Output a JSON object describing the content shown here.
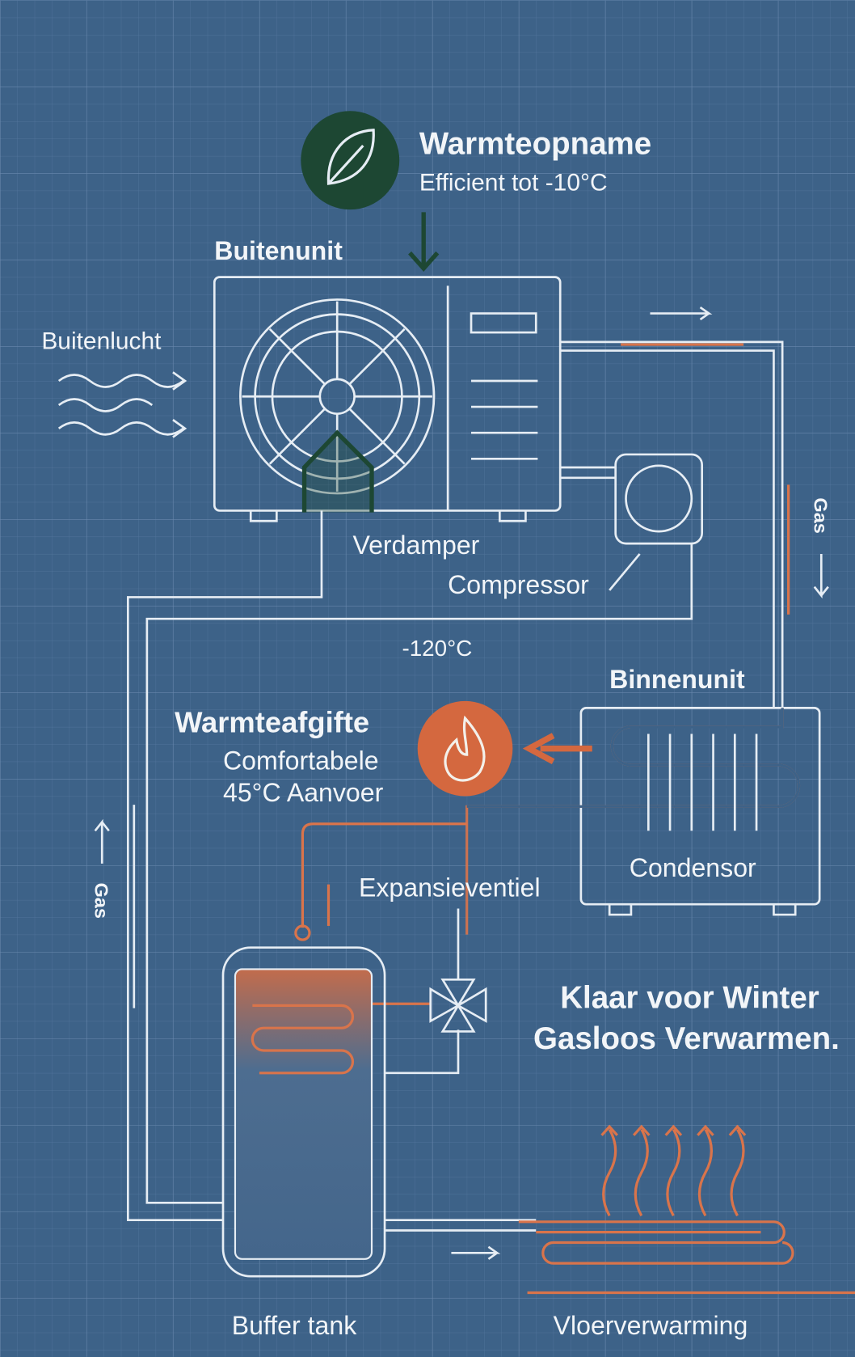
{
  "heat_intake": {
    "title": "Warmteopname",
    "subtitle": "Efficient tot -10°C"
  },
  "outdoor_unit": {
    "label": "Buitenunit",
    "air_label": "Buitenlucht",
    "evaporator_label": "Verdamper",
    "compressor_label": "Compressor"
  },
  "pipe_temperature": "-120°C",
  "gas_label_right": "Gas",
  "gas_label_left": "Gas",
  "indoor_unit": {
    "label": "Binnenunit",
    "condenser_label": "Condensor"
  },
  "heat_output": {
    "title": "Warmteafgifte",
    "line1": "Comfortabele",
    "line2": "45°C Aanvoer"
  },
  "valve_label": "Expansieventiel",
  "tagline": {
    "line1": "Klaar voor Winter",
    "line2": "Gasloos Verwarmen."
  },
  "buffer_tank_label": "Buffer tank",
  "floor_heating_label": "Vloerverwarming"
}
